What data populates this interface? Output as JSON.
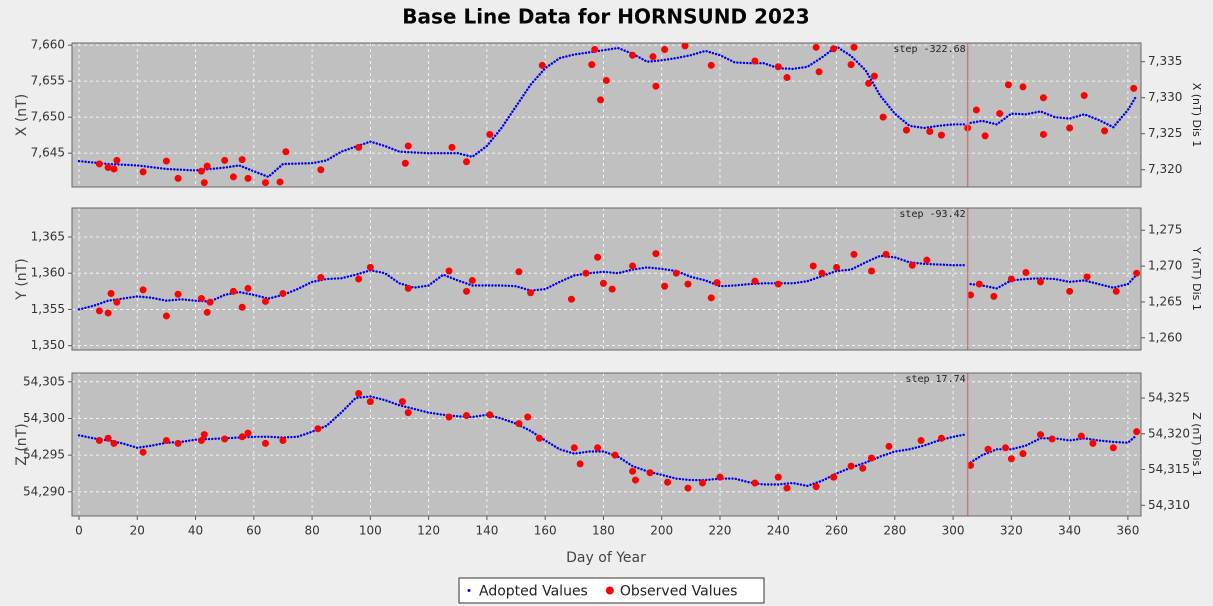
{
  "chart_data": [
    {
      "type": "line",
      "title": "Base Line Data for HORNSUND 2023",
      "ylabel": "X (nT)",
      "y2label": "X (nT)  Dis 1",
      "grid": true,
      "legend": "bottom",
      "xlim": [
        -2.4,
        364.5
      ],
      "xticks": [
        0,
        20,
        40,
        60,
        80,
        100,
        120,
        140,
        160,
        180,
        200,
        220,
        240,
        260,
        280,
        300,
        320,
        340,
        360
      ],
      "ylim": [
        7640.3,
        7660.3
      ],
      "yticks": [
        {
          "value": 7645,
          "label": "7,645"
        },
        {
          "value": 7650,
          "label": "7,650"
        },
        {
          "value": 7655,
          "label": "7,655"
        },
        {
          "value": 7660,
          "label": "7,660"
        }
      ],
      "y2lim": [
        7317.6,
        7337.6
      ],
      "y2ticks": [
        {
          "value": 7320,
          "label": "7,320"
        },
        {
          "value": 7325,
          "label": "7,325"
        },
        {
          "value": 7330,
          "label": "7,330"
        },
        {
          "value": 7335,
          "label": "7,335"
        }
      ],
      "annotations": [
        {
          "text": "step -322.68",
          "x": 305
        }
      ],
      "series": [
        {
          "name": "Adopted Values",
          "type": "line",
          "color": "#0000ff",
          "x": [
            0,
            10,
            20,
            30,
            40,
            50,
            55,
            60,
            65,
            70,
            80,
            85,
            90,
            100,
            105,
            110,
            120,
            130,
            135,
            140,
            145,
            150,
            155,
            160,
            165,
            170,
            175,
            180,
            185,
            190,
            195,
            200,
            205,
            210,
            215,
            220,
            225,
            230,
            235,
            240,
            245,
            250,
            255,
            260,
            265,
            270,
            275,
            280,
            285,
            290,
            295,
            300,
            304,
            305,
            306,
            310,
            315,
            320,
            325,
            330,
            335,
            340,
            345,
            350,
            355,
            360,
            363
          ],
          "values": [
            7643.9,
            7643.5,
            7643.3,
            7642.8,
            7642.6,
            7643.0,
            7643.3,
            7642.5,
            7641.7,
            7643.5,
            7643.6,
            7644.0,
            7645.2,
            7646.6,
            7646.0,
            7645.2,
            7645.0,
            7645.0,
            7644.5,
            7646.0,
            7648.5,
            7651.5,
            7654.5,
            7656.8,
            7658.2,
            7658.7,
            7659.0,
            7659.3,
            7659.6,
            7658.8,
            7657.7,
            7657.9,
            7658.2,
            7658.6,
            7659.2,
            7658.6,
            7657.6,
            7657.5,
            7657.5,
            7656.8,
            7656.7,
            7657.0,
            7658.3,
            7659.8,
            7658.5,
            7656.5,
            7653.0,
            7650.5,
            7648.8,
            7648.5,
            7648.8,
            7649.0,
            7649.0,
            null,
            7649.2,
            7649.5,
            7649.0,
            7650.5,
            7650.4,
            7650.8,
            7650.0,
            7649.8,
            7650.4,
            7649.6,
            7648.6,
            7651.0,
            7653.0
          ]
        },
        {
          "name": "Observed Values",
          "type": "scatter",
          "color": "#ff0000",
          "x": [
            7,
            10,
            12,
            13,
            22,
            30,
            34,
            42,
            43,
            44,
            50,
            53,
            56,
            58,
            64,
            69,
            71,
            83,
            96,
            112,
            113,
            128,
            133,
            141,
            159,
            176,
            177,
            179,
            181,
            190,
            197,
            198,
            201,
            208,
            217,
            232,
            240,
            243,
            253,
            254,
            259,
            265,
            266,
            271,
            273,
            276,
            284,
            292,
            296,
            305,
            308,
            311,
            316,
            319,
            324,
            331,
            331,
            340,
            345,
            352,
            362
          ],
          "values": [
            7643.5,
            7643,
            7642.8,
            7644,
            7642.4,
            7643.9,
            7641.5,
            7642.5,
            7640.9,
            7643.2,
            7644,
            7641.7,
            7644.1,
            7641.5,
            7640.9,
            7641,
            7645.2,
            7642.7,
            7645.8,
            7643.6,
            7646,
            7645.8,
            7643.8,
            7647.6,
            7657.2,
            7657.3,
            7659.4,
            7652.4,
            7655.1,
            7658.6,
            7658.4,
            7654.3,
            7659.4,
            7659.9,
            7657.2,
            7657.8,
            7657,
            7655.5,
            7659.7,
            7656.3,
            7659.5,
            7657.3,
            7659.7,
            7654.7,
            7655.7,
            7650,
            7648.2,
            7648,
            7647.5,
            7648.5,
            7651,
            7647.4,
            7650.5,
            7654.5,
            7654.2,
            7652.7,
            7647.6,
            7648.5,
            7653,
            7648.1,
            7654
          ]
        }
      ]
    },
    {
      "type": "line",
      "ylabel": "Y (nT)",
      "y2label": "Y (nT)  Dis 1",
      "grid": true,
      "xlim": [
        -2.4,
        364.5
      ],
      "xticks": [
        0,
        20,
        40,
        60,
        80,
        100,
        120,
        140,
        160,
        180,
        200,
        220,
        240,
        260,
        280,
        300,
        320,
        340,
        360
      ],
      "ylim": [
        1349.4,
        1369.0
      ],
      "yticks": [
        {
          "value": 1350,
          "label": "1,350"
        },
        {
          "value": 1355,
          "label": "1,355"
        },
        {
          "value": 1360,
          "label": "1,360"
        },
        {
          "value": 1365,
          "label": "1,365"
        }
      ],
      "y2lim": [
        1258.3,
        1278.1
      ],
      "y2ticks": [
        {
          "value": 1260,
          "label": "1,260"
        },
        {
          "value": 1265,
          "label": "1,265"
        },
        {
          "value": 1270,
          "label": "1,270"
        },
        {
          "value": 1275,
          "label": "1,275"
        }
      ],
      "annotations": [
        {
          "text": "step -93.42",
          "x": 305
        }
      ],
      "series": [
        {
          "name": "Adopted Values",
          "type": "line",
          "color": "#0000ff",
          "x": [
            0,
            5,
            10,
            15,
            20,
            25,
            30,
            35,
            40,
            45,
            50,
            55,
            60,
            65,
            70,
            75,
            80,
            85,
            90,
            95,
            100,
            105,
            110,
            115,
            120,
            125,
            130,
            135,
            140,
            145,
            150,
            155,
            160,
            165,
            170,
            175,
            180,
            185,
            190,
            195,
            200,
            205,
            210,
            215,
            220,
            225,
            230,
            235,
            240,
            245,
            250,
            255,
            260,
            265,
            270,
            275,
            280,
            285,
            290,
            295,
            300,
            304,
            305,
            306,
            310,
            315,
            320,
            325,
            330,
            335,
            340,
            345,
            350,
            355,
            360,
            363
          ],
          "values": [
            1355.0,
            1355.5,
            1356.2,
            1356.5,
            1356.8,
            1356.6,
            1356.2,
            1356.4,
            1356.2,
            1356.1,
            1357.0,
            1357.4,
            1357.0,
            1356.5,
            1357.0,
            1357.8,
            1358.8,
            1359.2,
            1359.3,
            1359.8,
            1360.4,
            1360.0,
            1358.6,
            1358.0,
            1358.3,
            1359.8,
            1359.0,
            1358.3,
            1358.3,
            1358.3,
            1358.2,
            1357.6,
            1357.8,
            1358.8,
            1359.7,
            1360.0,
            1360.2,
            1360.0,
            1360.5,
            1360.8,
            1360.6,
            1360.3,
            1359.5,
            1359.0,
            1358.2,
            1358.3,
            1358.5,
            1358.6,
            1358.6,
            1358.6,
            1358.9,
            1359.6,
            1360.3,
            1360.5,
            1361.5,
            1362.4,
            1362.2,
            1361.5,
            1361.3,
            1361.2,
            1361.1,
            1361.1,
            null,
            1358.5,
            1358.3,
            1357.9,
            1359.0,
            1359.2,
            1359.3,
            1359.2,
            1358.8,
            1359.0,
            1358.5,
            1358.0,
            1358.5,
            1359.8
          ]
        },
        {
          "name": "Observed Values",
          "type": "scatter",
          "color": "#ff0000",
          "x": [
            7,
            10,
            11,
            13,
            22,
            30,
            34,
            42,
            44,
            45,
            53,
            56,
            58,
            64,
            70,
            83,
            96,
            100,
            113,
            127,
            133,
            135,
            151,
            155,
            169,
            174,
            178,
            180,
            183,
            190,
            198,
            201,
            205,
            209,
            217,
            219,
            232,
            240,
            252,
            255,
            260,
            266,
            272,
            277,
            286,
            291,
            306,
            309,
            314,
            320,
            325,
            330,
            340,
            346,
            356,
            363
          ],
          "values": [
            1354.8,
            1354.5,
            1357.2,
            1356,
            1357.7,
            1354.1,
            1357.1,
            1356.5,
            1354.6,
            1356,
            1357.5,
            1355.3,
            1357.9,
            1356.1,
            1357.2,
            1359.4,
            1359.2,
            1360.8,
            1357.9,
            1360.3,
            1357.5,
            1359,
            1360.2,
            1357.3,
            1356.4,
            1360,
            1362.2,
            1358.6,
            1357.8,
            1361,
            1362.7,
            1358.2,
            1360,
            1358.5,
            1356.6,
            1358.7,
            1358.9,
            1358.5,
            1361,
            1360,
            1360.8,
            1362.6,
            1360.3,
            1362.6,
            1361.1,
            1361.8,
            1357,
            1358.5,
            1356.8,
            1359.2,
            1360.1,
            1358.8,
            1357.5,
            1359.5,
            1357.5,
            1360
          ]
        }
      ]
    },
    {
      "type": "line",
      "ylabel": "Z (nT)",
      "y2label": "Z (nT)  Dis 1",
      "xlabel": "Day of Year",
      "grid": true,
      "xlim": [
        -2.4,
        364.5
      ],
      "xticks": [
        0,
        20,
        40,
        60,
        80,
        100,
        120,
        140,
        160,
        180,
        200,
        220,
        240,
        260,
        280,
        300,
        320,
        340,
        360
      ],
      "ylim": [
        54286.7,
        54306.2
      ],
      "yticks": [
        {
          "value": 54290,
          "label": "54,290"
        },
        {
          "value": 54295,
          "label": "54,295"
        },
        {
          "value": 54300,
          "label": "54,300"
        },
        {
          "value": 54305,
          "label": "54,305"
        }
      ],
      "y2lim": [
        54308.5,
        54328.5
      ],
      "y2ticks": [
        {
          "value": 54310,
          "label": "54,310"
        },
        {
          "value": 54315,
          "label": "54,315"
        },
        {
          "value": 54320,
          "label": "54,320"
        },
        {
          "value": 54325,
          "label": "54,325"
        }
      ],
      "annotations": [
        {
          "text": "step 17.74",
          "x": 305
        }
      ],
      "series": [
        {
          "name": "Adopted Values",
          "type": "line",
          "color": "#0000ff",
          "x": [
            0,
            5,
            10,
            15,
            20,
            25,
            30,
            35,
            40,
            45,
            50,
            55,
            60,
            65,
            70,
            75,
            80,
            85,
            90,
            95,
            100,
            105,
            110,
            115,
            120,
            125,
            130,
            135,
            140,
            145,
            150,
            155,
            160,
            165,
            170,
            175,
            180,
            185,
            190,
            195,
            200,
            205,
            210,
            215,
            220,
            225,
            230,
            235,
            240,
            245,
            250,
            255,
            260,
            265,
            270,
            275,
            280,
            285,
            290,
            295,
            300,
            304,
            305,
            306,
            310,
            315,
            320,
            325,
            330,
            335,
            340,
            345,
            350,
            355,
            360,
            363
          ],
          "values": [
            54297.7,
            54297.3,
            54297.0,
            54296.6,
            54296.0,
            54296.3,
            54296.7,
            54296.8,
            54297.1,
            54297.2,
            54297.3,
            54297.4,
            54297.5,
            54297.5,
            54297.4,
            54297.5,
            54298.2,
            54299.0,
            54300.8,
            54302.8,
            54303.0,
            54302.5,
            54301.8,
            54301.3,
            54300.8,
            54300.5,
            54300.3,
            54300.2,
            54300.5,
            54300.0,
            54299.3,
            54298.3,
            54297.0,
            54295.8,
            54295.2,
            54295.5,
            54295.5,
            54294.8,
            54293.5,
            54292.8,
            54292.3,
            54291.8,
            54291.6,
            54291.6,
            54291.8,
            54291.8,
            54291.3,
            54291.0,
            54291.0,
            54291.2,
            54290.8,
            54291.5,
            54292.5,
            54293.3,
            54294.0,
            54294.8,
            54295.5,
            54295.8,
            54296.3,
            54297.0,
            54297.5,
            54297.8,
            null,
            54294.0,
            54295.0,
            54295.8,
            54295.8,
            54296.3,
            54297.3,
            54297.3,
            54297.0,
            54297.3,
            54297.0,
            54296.8,
            54296.7,
            54297.7
          ]
        },
        {
          "name": "Observed Values",
          "type": "scatter",
          "color": "#ff0000",
          "x": [
            7,
            10,
            12,
            22,
            30,
            34,
            42,
            43,
            50,
            56,
            58,
            64,
            70,
            82,
            96,
            100,
            111,
            113,
            127,
            133,
            141,
            151,
            154,
            158,
            170,
            172,
            178,
            184,
            190,
            191,
            196,
            202,
            209,
            214,
            220,
            232,
            240,
            243,
            253,
            259,
            265,
            269,
            272,
            278,
            289,
            296,
            306,
            312,
            318,
            320,
            324,
            330,
            334,
            344,
            348,
            355,
            363
          ],
          "values": [
            54297,
            54297.3,
            54296.6,
            54295.4,
            54297,
            54296.6,
            54297,
            54297.8,
            54297.2,
            54297.5,
            54298,
            54296.6,
            54297,
            54298.6,
            54303.4,
            54302.3,
            54302.3,
            54300.8,
            54300.2,
            54300.4,
            54300.5,
            54299.3,
            54300.2,
            54297.3,
            54296,
            54293.8,
            54296,
            54295,
            54292.8,
            54291.6,
            54292.6,
            54291.3,
            54290.5,
            54291.2,
            54292,
            54291.2,
            54292,
            54290.5,
            54290.7,
            54292,
            54293.5,
            54293.2,
            54294.6,
            54296.2,
            54297,
            54297.3,
            54293.6,
            54295.8,
            54296,
            54294.5,
            54295.2,
            54297.8,
            54297.2,
            54297.6,
            54296.6,
            54296,
            54298.2
          ]
        }
      ]
    }
  ]
}
